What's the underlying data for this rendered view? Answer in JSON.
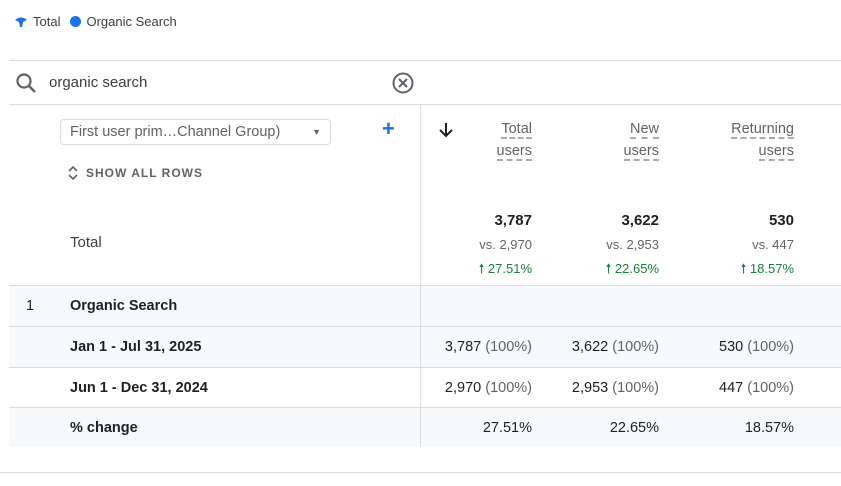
{
  "legend": [
    {
      "label": "Total",
      "color": "#1a73e8"
    },
    {
      "label": "Organic Search",
      "color": "#1a73e8"
    }
  ],
  "search": {
    "value": "organic search"
  },
  "dimension": {
    "label": "First user prim…Channel Group)",
    "show_all_rows": "SHOW ALL ROWS"
  },
  "columns": [
    {
      "line1": "Total",
      "line2": "users"
    },
    {
      "line1": "New",
      "line2": "users"
    },
    {
      "line1": "Returning",
      "line2": "users"
    }
  ],
  "total": {
    "label": "Total",
    "values": [
      "3,787",
      "3,622",
      "530"
    ],
    "vs": [
      "vs. 2,970",
      "vs. 2,953",
      "vs. 447"
    ],
    "change": [
      "27.51%",
      "22.65%",
      "18.57%"
    ]
  },
  "rows": [
    {
      "index": "1",
      "label": "Organic Search"
    },
    {
      "label": "Jan 1 - Jul 31, 2025",
      "values": [
        "3,787",
        "3,622",
        "530"
      ],
      "pcts": [
        "(100%)",
        "(100%)",
        "(100%)"
      ]
    },
    {
      "label": "Jun 1 - Dec 31, 2024",
      "values": [
        "2,970",
        "2,953",
        "447"
      ],
      "pcts": [
        "(100%)",
        "(100%)",
        "(100%)"
      ]
    },
    {
      "label": "% change",
      "values": [
        "27.51%",
        "22.65%",
        "18.57%"
      ]
    }
  ]
}
